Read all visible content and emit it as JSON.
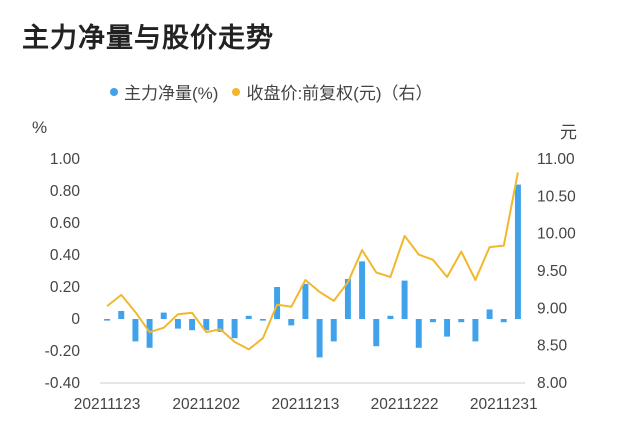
{
  "title": "主力净量与股价走势",
  "colors": {
    "bar": "#3fa2ea",
    "line": "#f1b82d",
    "axis": "#cccccc"
  },
  "legend": {
    "bar_label": "主力净量(%)",
    "line_label": "收盘价:前复权(元)（右）"
  },
  "units": {
    "left": "%",
    "right": "元"
  },
  "chart_data": {
    "type": "bar",
    "x_tick_labels": [
      "20211123",
      "20211202",
      "20211213",
      "20211222",
      "20211231"
    ],
    "y_left_ticks": [
      "1.00",
      "0.80",
      "0.60",
      "0.40",
      "0.20",
      "0",
      "-0.20",
      "-0.40"
    ],
    "y_right_ticks": [
      "11.00",
      "10.50",
      "10.00",
      "9.50",
      "9.00",
      "8.50",
      "8.00"
    ],
    "ylim_left": [
      -0.4,
      1.0
    ],
    "ylim_right": [
      8.0,
      11.0
    ],
    "tick_positions": [
      0,
      7,
      14,
      21,
      28
    ],
    "series": [
      {
        "name": "主力净量(%)",
        "axis": "left",
        "type": "bar",
        "values": [
          -0.01,
          0.05,
          -0.14,
          -0.18,
          0.04,
          -0.06,
          -0.07,
          -0.07,
          -0.08,
          -0.12,
          0.02,
          -0.01,
          0.2,
          -0.04,
          0.22,
          -0.24,
          -0.14,
          0.25,
          0.36,
          -0.17,
          0.02,
          0.24,
          -0.18,
          -0.02,
          -0.11,
          -0.02,
          -0.14,
          0.06,
          -0.02,
          0.84
        ]
      },
      {
        "name": "收盘价:前复权(元)（右）",
        "axis": "right",
        "type": "line",
        "values": [
          9.03,
          9.18,
          8.95,
          8.68,
          8.74,
          8.92,
          8.94,
          8.68,
          8.72,
          8.55,
          8.45,
          8.6,
          9.05,
          9.02,
          9.38,
          9.22,
          9.1,
          9.35,
          9.78,
          9.48,
          9.42,
          9.97,
          9.72,
          9.65,
          9.42,
          9.76,
          9.38,
          9.82,
          9.84,
          10.82
        ]
      }
    ]
  }
}
